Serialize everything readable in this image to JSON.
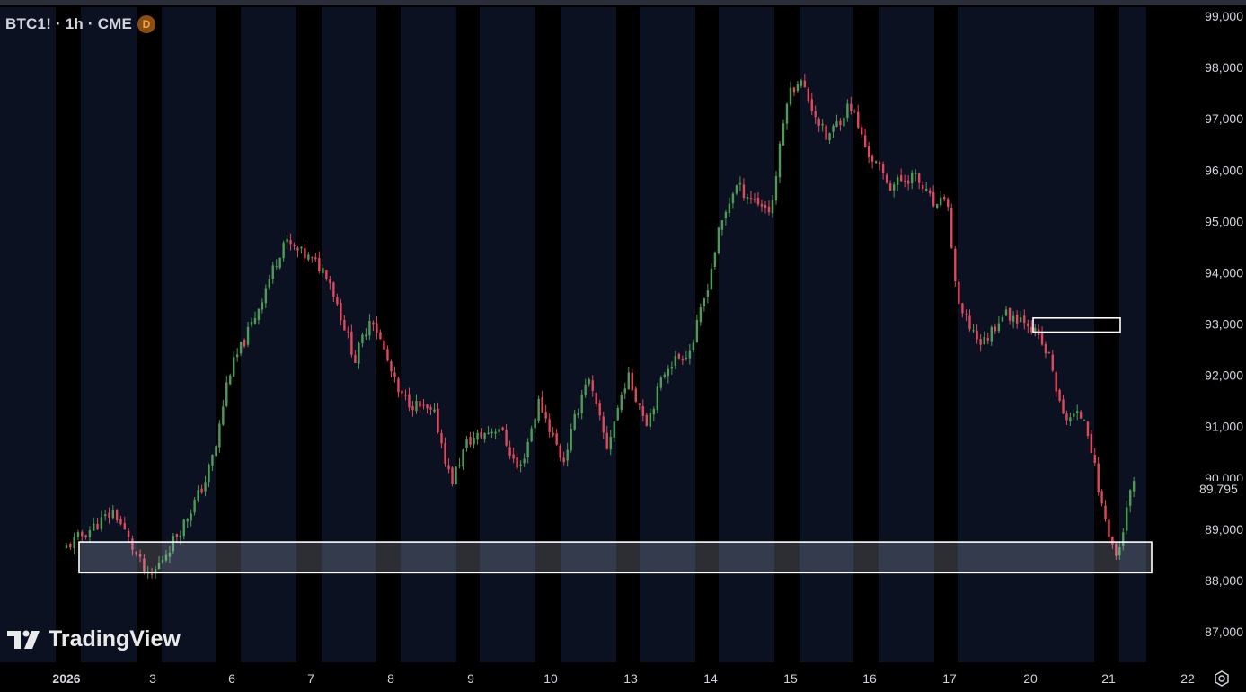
{
  "header": {
    "symbol": "BTC1! · 1h · CME",
    "badge": "D"
  },
  "watermark": {
    "text": "TradingView",
    "logo": "tradingview-logo"
  },
  "last_price_label": "89,795",
  "icons": {
    "settings": "gear-icon"
  },
  "colors": {
    "background": "#000000",
    "session_band": "#0b1120",
    "up": "#4e9b56",
    "down": "#e0485b",
    "zone": "#ffffff",
    "axis_text": "#d1d4dc"
  },
  "chart_data": {
    "type": "candlestick",
    "title": "BTC1! · 1h · CME",
    "ylim": [
      86600,
      99000
    ],
    "y_ticks": [
      {
        "value": 99000,
        "label": "99,000"
      },
      {
        "value": 98000,
        "label": "98,000"
      },
      {
        "value": 97000,
        "label": "97,000"
      },
      {
        "value": 96000,
        "label": "96,000"
      },
      {
        "value": 95000,
        "label": "95,000"
      },
      {
        "value": 94000,
        "label": "94,000"
      },
      {
        "value": 93000,
        "label": "93,000"
      },
      {
        "value": 92000,
        "label": "92,000"
      },
      {
        "value": 91000,
        "label": "91,000"
      },
      {
        "value": 90000,
        "label": "90,000"
      },
      {
        "value": 89000,
        "label": "89,000"
      },
      {
        "value": 88000,
        "label": "88,000"
      },
      {
        "value": 87000,
        "label": "87,000"
      }
    ],
    "x_ticks": [
      "2026",
      "3",
      "6",
      "7",
      "8",
      "9",
      "10",
      "13",
      "14",
      "15",
      "16",
      "17",
      "20",
      "21",
      "22"
    ],
    "last_price": 89795,
    "zones": [
      {
        "name": "demand-zone",
        "from": 88150,
        "to": 88750
      },
      {
        "name": "resistance-level",
        "from": 92930,
        "to": 93100
      }
    ],
    "price_path": [
      {
        "t": 0.0,
        "p": 88600
      },
      {
        "t": 0.6,
        "p": 89350
      },
      {
        "t": 1.0,
        "p": 88000
      },
      {
        "t": 1.45,
        "p": 89150
      },
      {
        "t": 1.7,
        "p": 89900
      },
      {
        "t": 1.85,
        "p": 90650
      },
      {
        "t": 2.0,
        "p": 92000
      },
      {
        "t": 2.3,
        "p": 93000
      },
      {
        "t": 2.7,
        "p": 94600
      },
      {
        "t": 3.0,
        "p": 94300
      },
      {
        "t": 3.25,
        "p": 94000
      },
      {
        "t": 3.6,
        "p": 92300
      },
      {
        "t": 3.8,
        "p": 93200
      },
      {
        "t": 4.15,
        "p": 91600
      },
      {
        "t": 4.6,
        "p": 91200
      },
      {
        "t": 4.8,
        "p": 89900
      },
      {
        "t": 5.0,
        "p": 90700
      },
      {
        "t": 5.4,
        "p": 91000
      },
      {
        "t": 5.65,
        "p": 90100
      },
      {
        "t": 5.9,
        "p": 91500
      },
      {
        "t": 6.2,
        "p": 90300
      },
      {
        "t": 6.5,
        "p": 92000
      },
      {
        "t": 6.75,
        "p": 90600
      },
      {
        "t": 7.0,
        "p": 92000
      },
      {
        "t": 7.25,
        "p": 91100
      },
      {
        "t": 7.5,
        "p": 92200
      },
      {
        "t": 7.8,
        "p": 92500
      },
      {
        "t": 8.0,
        "p": 93700
      },
      {
        "t": 8.15,
        "p": 94800
      },
      {
        "t": 8.35,
        "p": 95700
      },
      {
        "t": 8.8,
        "p": 95200
      },
      {
        "t": 9.0,
        "p": 97400
      },
      {
        "t": 9.15,
        "p": 97800
      },
      {
        "t": 9.5,
        "p": 96600
      },
      {
        "t": 9.8,
        "p": 97300
      },
      {
        "t": 10.0,
        "p": 96400
      },
      {
        "t": 10.3,
        "p": 95700
      },
      {
        "t": 10.6,
        "p": 95900
      },
      {
        "t": 10.9,
        "p": 95200
      },
      {
        "t": 11.0,
        "p": 95600
      },
      {
        "t": 11.15,
        "p": 93300
      },
      {
        "t": 11.45,
        "p": 92600
      },
      {
        "t": 11.7,
        "p": 93200
      },
      {
        "t": 12.0,
        "p": 93100
      },
      {
        "t": 12.3,
        "p": 92300
      },
      {
        "t": 12.45,
        "p": 91200
      },
      {
        "t": 12.75,
        "p": 91200
      },
      {
        "t": 12.95,
        "p": 89500
      },
      {
        "t": 13.15,
        "p": 88400
      },
      {
        "t": 13.35,
        "p": 89900
      }
    ]
  }
}
